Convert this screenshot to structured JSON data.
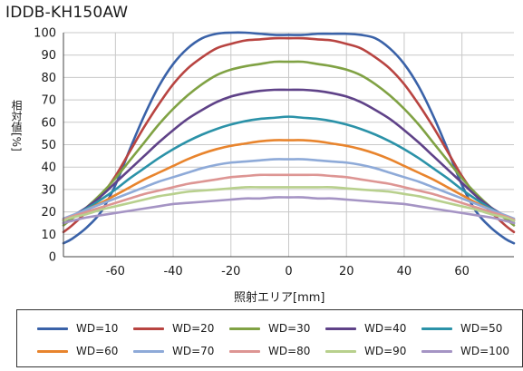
{
  "chart_data": {
    "type": "line",
    "title": "IDDB-KH150AW",
    "xlabel": "照射エリア[mm]",
    "ylabel": "相対値[%]",
    "xlim": [
      -78,
      78
    ],
    "ylim": [
      0,
      100
    ],
    "xticks": [
      -60,
      -40,
      -20,
      0,
      20,
      40,
      60
    ],
    "yticks": [
      0,
      10,
      20,
      30,
      40,
      50,
      60,
      70,
      80,
      90,
      100
    ],
    "x": [
      -78,
      -75,
      -70,
      -65,
      -60,
      -55,
      -50,
      -45,
      -40,
      -35,
      -30,
      -25,
      -20,
      -15,
      -10,
      -5,
      0,
      5,
      10,
      15,
      20,
      25,
      30,
      35,
      40,
      45,
      50,
      55,
      60,
      65,
      70,
      75,
      78
    ],
    "series": [
      {
        "name": "WD=10",
        "color": "#3a62a8",
        "values": [
          6,
          8,
          13,
          20,
          32,
          48,
          63,
          76,
          86,
          93,
          97.5,
          99.5,
          100,
          100,
          99.5,
          99,
          99,
          99,
          99.5,
          99.5,
          99.5,
          99,
          97.5,
          93,
          86,
          76,
          63,
          48,
          32,
          20,
          13,
          8,
          6
        ]
      },
      {
        "name": "WD=20",
        "color": "#b84441",
        "values": [
          11,
          14,
          20,
          27,
          36,
          47,
          58,
          68,
          77,
          84,
          89,
          93,
          95,
          96.5,
          97,
          97.5,
          97.5,
          97.5,
          97,
          96.5,
          95,
          93,
          89,
          84,
          77,
          68,
          58,
          47,
          36,
          27,
          20,
          14,
          11
        ]
      },
      {
        "name": "WD=30",
        "color": "#80a244",
        "values": [
          14,
          17,
          22,
          28,
          35,
          43,
          51,
          59,
          66,
          72,
          77,
          81,
          83.5,
          85,
          86,
          87,
          87,
          87,
          86,
          85,
          83.5,
          81,
          77,
          72,
          66,
          59,
          51,
          43,
          35,
          28,
          22,
          17,
          14
        ]
      },
      {
        "name": "WD=40",
        "color": "#5f4288",
        "values": [
          15,
          18,
          22,
          27,
          33,
          39,
          45,
          51,
          56.5,
          61.5,
          65.5,
          69,
          71.5,
          73,
          74,
          74.5,
          74.5,
          74.5,
          74,
          73,
          71.5,
          69,
          65.5,
          61.5,
          56.5,
          51,
          45,
          39,
          33,
          27,
          22,
          18,
          15
        ]
      },
      {
        "name": "WD=50",
        "color": "#2b92a8",
        "values": [
          16,
          18,
          21.5,
          25.5,
          30,
          35,
          39.5,
          44,
          48,
          51.5,
          54.5,
          57,
          59,
          60.5,
          61.5,
          62,
          62.5,
          62,
          61.5,
          60.5,
          59,
          57,
          54.5,
          51.5,
          48,
          44,
          39.5,
          35,
          30,
          25.5,
          21.5,
          18,
          16
        ]
      },
      {
        "name": "WD=60",
        "color": "#e8842d",
        "values": [
          16.5,
          18,
          21,
          24,
          27.5,
          31,
          34.5,
          37.5,
          40.5,
          43.5,
          46,
          48,
          49.5,
          50.5,
          51.5,
          52,
          52,
          52,
          51.5,
          50.5,
          49.5,
          48,
          46,
          43.5,
          40.5,
          37.5,
          34.5,
          31,
          27.5,
          24,
          21,
          18,
          16.5
        ]
      },
      {
        "name": "WD=70",
        "color": "#8eaad8",
        "values": [
          17,
          18.5,
          21,
          23.5,
          26,
          28.5,
          31,
          33.5,
          35.5,
          37.5,
          39.5,
          41,
          42,
          42.5,
          43,
          43.5,
          43.5,
          43.5,
          43,
          42.5,
          42,
          41,
          39.5,
          37.5,
          35.5,
          33.5,
          31,
          28.5,
          26,
          23.5,
          21,
          18.5,
          17
        ]
      },
      {
        "name": "WD=80",
        "color": "#dd9593",
        "values": [
          16.5,
          18,
          20,
          22,
          24,
          26,
          28,
          29.5,
          31,
          32.5,
          33.5,
          34.5,
          35.5,
          36,
          36.5,
          36.5,
          36.5,
          36.5,
          36.5,
          36,
          35.5,
          34.5,
          33.5,
          32.5,
          31,
          29.5,
          28,
          26,
          24,
          22,
          20,
          18,
          16.5
        ]
      },
      {
        "name": "WD=90",
        "color": "#b8d08d",
        "values": [
          16,
          17.5,
          19,
          21,
          22.5,
          24,
          25.5,
          27,
          28,
          29,
          29.5,
          30,
          30.5,
          31,
          31,
          31,
          31,
          31,
          31,
          31,
          30.5,
          30,
          29.5,
          29,
          28,
          27,
          25.5,
          24,
          22.5,
          21,
          19,
          17.5,
          16
        ]
      },
      {
        "name": "WD=100",
        "color": "#a594c4",
        "values": [
          15,
          16,
          17.5,
          18.5,
          19.5,
          20.5,
          21.5,
          22.5,
          23.5,
          24,
          24.5,
          25,
          25.5,
          26,
          26,
          26.5,
          26.5,
          26.5,
          26,
          26,
          25.5,
          25,
          24.5,
          24,
          23.5,
          22.5,
          21.5,
          20.5,
          19.5,
          18.5,
          17.5,
          16,
          15
        ]
      }
    ],
    "grid": true,
    "legend": "bottom"
  }
}
